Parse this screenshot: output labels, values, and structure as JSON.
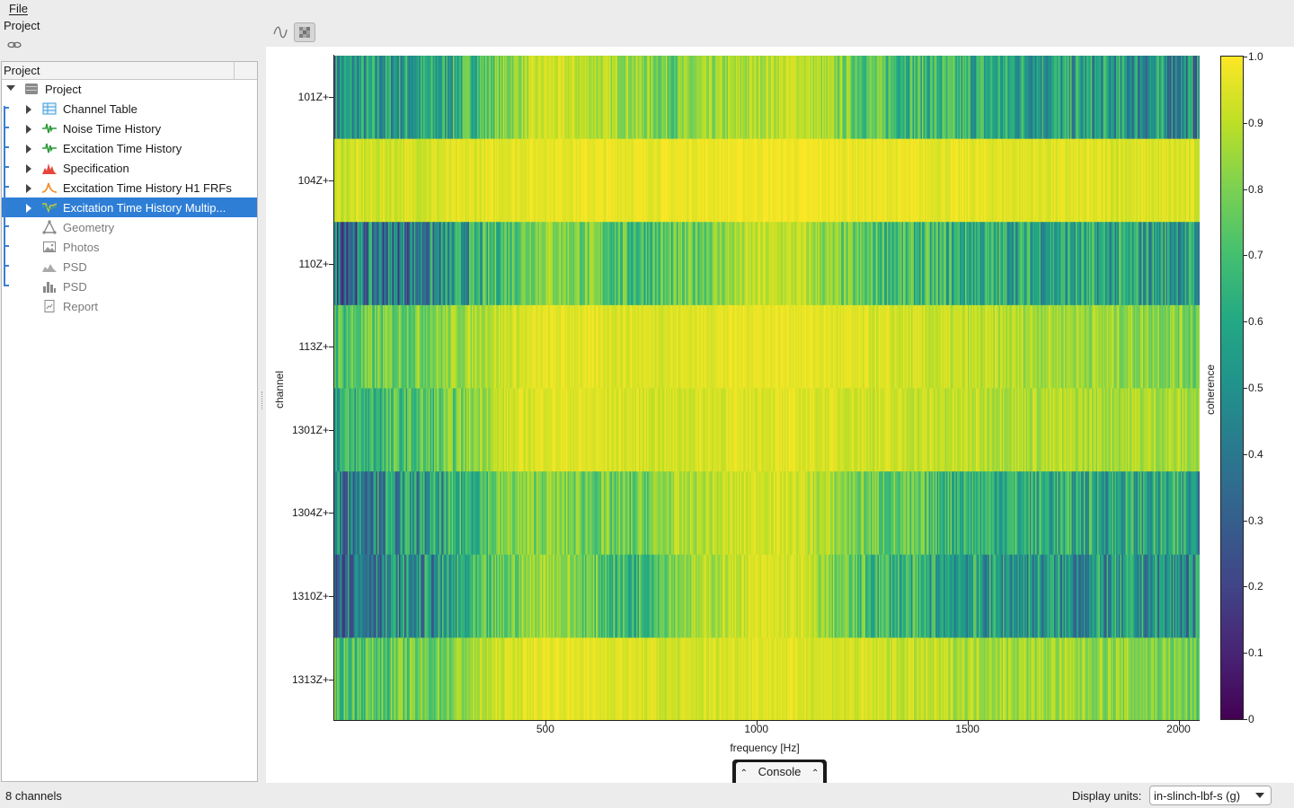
{
  "menubar": {
    "file": "File"
  },
  "dock": {
    "title": "Project"
  },
  "tree": {
    "header": "Project",
    "root": {
      "label": "Project",
      "icon": "project-icon"
    },
    "items": [
      {
        "label": "Channel Table",
        "icon": "table-icon",
        "expandable": true,
        "enabled": true,
        "selected": false
      },
      {
        "label": "Noise Time History",
        "icon": "time-history-icon",
        "expandable": true,
        "enabled": true,
        "selected": false
      },
      {
        "label": "Excitation Time History",
        "icon": "time-history-icon",
        "expandable": true,
        "enabled": true,
        "selected": false
      },
      {
        "label": "Specification",
        "icon": "specification-icon",
        "expandable": true,
        "enabled": true,
        "selected": false
      },
      {
        "label": "Excitation Time History H1 FRFs",
        "icon": "frf-icon",
        "expandable": true,
        "enabled": true,
        "selected": false
      },
      {
        "label": "Excitation Time History Multip...",
        "icon": "coherence-icon",
        "expandable": true,
        "enabled": true,
        "selected": true
      },
      {
        "label": "Geometry",
        "icon": "geometry-icon",
        "expandable": false,
        "enabled": false,
        "selected": false
      },
      {
        "label": "Photos",
        "icon": "photos-icon",
        "expandable": false,
        "enabled": false,
        "selected": false
      },
      {
        "label": "PSD",
        "icon": "psd-icon",
        "expandable": false,
        "enabled": false,
        "selected": false
      },
      {
        "label": "PSD",
        "icon": "psd-bar-icon",
        "expandable": false,
        "enabled": false,
        "selected": false
      },
      {
        "label": "Report",
        "icon": "report-icon",
        "expandable": false,
        "enabled": false,
        "selected": false
      }
    ]
  },
  "toolbar": {
    "line_plot": "line-plot-icon",
    "heatmap_plot": "heatmap-plot-icon"
  },
  "chart_data": {
    "type": "heatmap",
    "title": "",
    "xlabel": "frequency [Hz]",
    "ylabel": "channel",
    "colorbar_label": "coherence",
    "colormap": "viridis",
    "xlim": [
      0,
      2050
    ],
    "xticks": [
      "500",
      "1000",
      "1500",
      "2000"
    ],
    "xtick_values": [
      500,
      1000,
      1500,
      2000
    ],
    "categories": [
      "101Z+",
      "104Z+",
      "110Z+",
      "113Z+",
      "1301Z+",
      "1304Z+",
      "1310Z+",
      "1313Z+"
    ],
    "clim": [
      0,
      1
    ],
    "colorbar_ticks": [
      "0",
      "0.1",
      "0.2",
      "0.3",
      "0.4",
      "0.5",
      "0.6",
      "0.7",
      "0.8",
      "0.9",
      "1.0"
    ],
    "band_frequencies": [
      0,
      250,
      400,
      500,
      700,
      800,
      1000,
      1100,
      1250,
      1500,
      1750,
      2000,
      2050
    ],
    "rows": [
      [
        0.5,
        0.58,
        0.8,
        0.93,
        0.85,
        0.78,
        0.88,
        0.92,
        0.75,
        0.62,
        0.55,
        0.48,
        0.45
      ],
      [
        0.92,
        0.94,
        0.96,
        0.97,
        0.97,
        0.97,
        0.98,
        0.98,
        0.97,
        0.96,
        0.95,
        0.94,
        0.93
      ],
      [
        0.38,
        0.45,
        0.72,
        0.85,
        0.7,
        0.72,
        0.9,
        0.9,
        0.72,
        0.62,
        0.58,
        0.55,
        0.5
      ],
      [
        0.72,
        0.82,
        0.92,
        0.96,
        0.95,
        0.95,
        0.97,
        0.97,
        0.94,
        0.9,
        0.86,
        0.82,
        0.78
      ],
      [
        0.62,
        0.74,
        0.92,
        0.96,
        0.94,
        0.93,
        0.95,
        0.95,
        0.93,
        0.9,
        0.88,
        0.87,
        0.84
      ],
      [
        0.45,
        0.55,
        0.8,
        0.82,
        0.74,
        0.85,
        0.94,
        0.93,
        0.78,
        0.66,
        0.6,
        0.58,
        0.5
      ],
      [
        0.42,
        0.5,
        0.75,
        0.88,
        0.65,
        0.82,
        0.94,
        0.93,
        0.7,
        0.55,
        0.5,
        0.5,
        0.45
      ],
      [
        0.72,
        0.78,
        0.93,
        0.97,
        0.95,
        0.92,
        0.96,
        0.95,
        0.93,
        0.88,
        0.85,
        0.8,
        0.75
      ]
    ]
  },
  "console": {
    "label": "Console"
  },
  "status": {
    "text": "8 channels",
    "units_label": "Display units:",
    "units_value": "in-slinch-lbf-s (g)"
  }
}
